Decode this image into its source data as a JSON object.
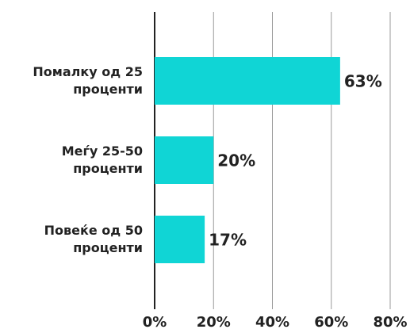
{
  "chart_data": {
    "type": "bar",
    "orientation": "horizontal",
    "categories": [
      "Помалку од 25 проценти",
      "Меѓу 25-50 проценти",
      "Повеќе од 50 проценти"
    ],
    "values": [
      63,
      20,
      17
    ],
    "value_labels": [
      "63%",
      "20%",
      "17%"
    ],
    "color": "#10d5d5",
    "xlim": [
      0,
      80
    ],
    "xticks": [
      {
        "value": 0,
        "label": "0%"
      },
      {
        "value": 20,
        "label": "20%"
      },
      {
        "value": 40,
        "label": "40%"
      },
      {
        "value": 60,
        "label": "60%"
      },
      {
        "value": 80,
        "label": "80%"
      }
    ],
    "grid": true
  }
}
